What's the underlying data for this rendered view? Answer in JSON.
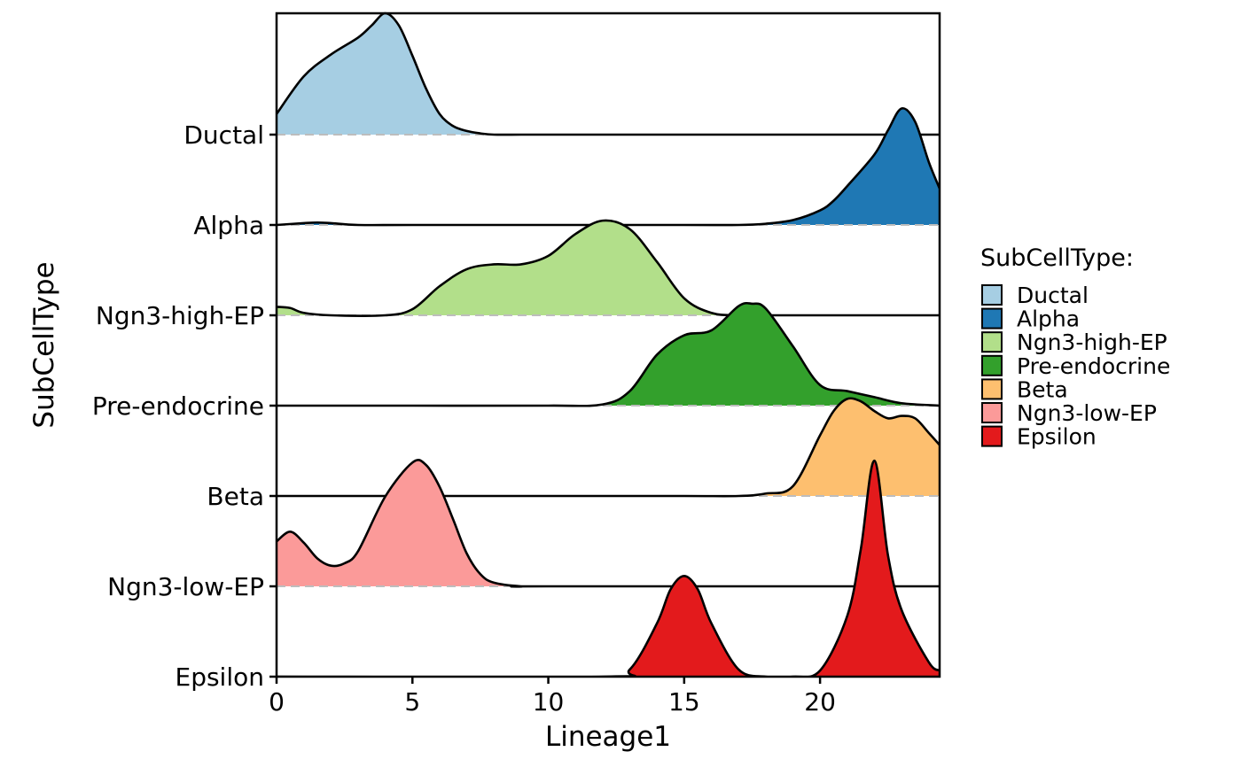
{
  "chart_data": {
    "type": "ridgeline",
    "xlabel": "Lineage1",
    "ylabel": "SubCellType",
    "xlim": [
      0,
      24.4
    ],
    "x_ticks": [
      0,
      5,
      10,
      15,
      20
    ],
    "grid": false,
    "legend": {
      "title": "SubCellType:",
      "placement": "right"
    },
    "categories": [
      "Ductal",
      "Alpha",
      "Ngn3-high-EP",
      "Pre-endocrine",
      "Beta",
      "Ngn3-low-EP",
      "Epsilon"
    ],
    "series": [
      {
        "name": "Ductal",
        "color": "#A6CEE3",
        "x": [
          0,
          1,
          2,
          3,
          3.5,
          4,
          4.5,
          5,
          5.5,
          6,
          6.5,
          7,
          7.5,
          8,
          9,
          10,
          12,
          14,
          16,
          18,
          20,
          22,
          24.4
        ],
        "density": [
          0.17,
          0.48,
          0.66,
          0.8,
          0.9,
          1.0,
          0.9,
          0.65,
          0.38,
          0.17,
          0.07,
          0.03,
          0.01,
          0.0,
          0.0,
          0.0,
          0.0,
          0.0,
          0.0,
          0.0,
          0.0,
          0.0,
          0.0
        ]
      },
      {
        "name": "Alpha",
        "color": "#1F78B4",
        "x": [
          0,
          1,
          1.5,
          2,
          3,
          5,
          10,
          15,
          17,
          18,
          19,
          20,
          20.5,
          21,
          22,
          22.5,
          23,
          23.5,
          24,
          24.4
        ],
        "density": [
          0.0,
          0.015,
          0.02,
          0.015,
          0.0,
          0.0,
          0.0,
          0.0,
          0.0,
          0.01,
          0.04,
          0.12,
          0.2,
          0.32,
          0.58,
          0.78,
          0.96,
          0.85,
          0.52,
          0.3
        ]
      },
      {
        "name": "Ngn3-high-EP",
        "color": "#B2DF8A",
        "x": [
          0,
          0.5,
          1,
          2,
          4,
          5,
          6,
          7,
          8,
          9,
          10,
          11,
          12,
          13,
          14,
          15,
          16,
          17,
          18,
          20,
          24.4
        ],
        "density": [
          0.07,
          0.06,
          0.02,
          0.0,
          0.0,
          0.05,
          0.24,
          0.38,
          0.42,
          0.42,
          0.49,
          0.67,
          0.78,
          0.71,
          0.44,
          0.14,
          0.02,
          0.0,
          0.0,
          0.0,
          0.0
        ]
      },
      {
        "name": "Pre-endocrine",
        "color": "#33A02C",
        "x": [
          0,
          5,
          10,
          12,
          13,
          14,
          15,
          16,
          17,
          17.5,
          18,
          19,
          20,
          21,
          22,
          23,
          24.4
        ],
        "density": [
          0.0,
          0.0,
          0.0,
          0.01,
          0.12,
          0.42,
          0.58,
          0.62,
          0.82,
          0.84,
          0.8,
          0.49,
          0.17,
          0.12,
          0.07,
          0.02,
          0.0
        ]
      },
      {
        "name": "Beta",
        "color": "#FDBF6F",
        "x": [
          0,
          5,
          10,
          15,
          17,
          18,
          19,
          20,
          20.5,
          21,
          21.5,
          22,
          22.5,
          23,
          23.5,
          24,
          24.4
        ],
        "density": [
          0.0,
          0.0,
          0.0,
          0.0,
          0.0,
          0.02,
          0.08,
          0.5,
          0.7,
          0.8,
          0.78,
          0.7,
          0.64,
          0.66,
          0.64,
          0.52,
          0.42
        ]
      },
      {
        "name": "Ngn3-low-EP",
        "color": "#FB9A99",
        "x": [
          0,
          0.5,
          1,
          1.5,
          2,
          2.5,
          3,
          4,
          5,
          5.5,
          6,
          6.5,
          7,
          7.5,
          8,
          9,
          10,
          24.4
        ],
        "density": [
          0.37,
          0.45,
          0.36,
          0.23,
          0.17,
          0.19,
          0.29,
          0.74,
          1.02,
          1.0,
          0.82,
          0.55,
          0.27,
          0.1,
          0.03,
          0.0,
          0.0,
          0.0
        ]
      },
      {
        "name": "Epsilon",
        "color": "#E31A1C",
        "x": [
          0,
          12,
          13,
          14,
          14.5,
          15,
          15.5,
          16,
          17,
          18,
          19,
          20,
          21,
          21.5,
          22,
          22.5,
          23,
          24,
          24.4
        ],
        "density": [
          0.0,
          0.0,
          0.06,
          0.44,
          0.72,
          0.83,
          0.72,
          0.44,
          0.06,
          0.0,
          0.0,
          0.05,
          0.5,
          1.05,
          1.78,
          1.0,
          0.55,
          0.12,
          0.05
        ]
      }
    ]
  }
}
